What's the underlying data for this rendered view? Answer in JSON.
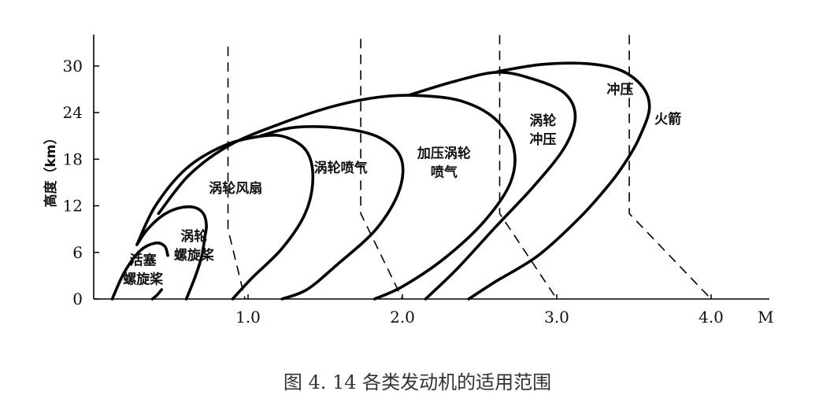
{
  "chart_data": {
    "type": "area",
    "caption": "图 4. 14  各类发动机的适用范围",
    "ylabel": "高度（km）",
    "xlabel": "M",
    "xlim": [
      0,
      4.3
    ],
    "ylim": [
      0,
      34
    ],
    "x_ticks": [
      {
        "value": 1.0,
        "label": "1.0"
      },
      {
        "value": 2.0,
        "label": "2.0"
      },
      {
        "value": 3.0,
        "label": "3.0"
      },
      {
        "value": 4.0,
        "label": "4.0"
      }
    ],
    "y_ticks": [
      {
        "value": 0,
        "label": "0"
      },
      {
        "value": 6,
        "label": "6"
      },
      {
        "value": 12,
        "label": "12"
      },
      {
        "value": 18,
        "label": "18"
      },
      {
        "value": 24,
        "label": "24"
      },
      {
        "value": 30,
        "label": "30"
      }
    ],
    "regions": [
      {
        "name": "piston-prop",
        "labels": [
          "活塞",
          "螺旋桨"
        ],
        "label_pos": [
          0.32,
          4.4
        ],
        "envelope": [
          [
            0.12,
            0
          ],
          [
            0.2,
            3.5
          ],
          [
            0.3,
            6.2
          ],
          [
            0.4,
            7.2
          ],
          [
            0.46,
            6.8
          ],
          [
            0.48,
            5.6
          ]
        ],
        "inner_tail": [
          [
            0.38,
            0
          ],
          [
            0.41,
            0.5
          ],
          [
            0.44,
            1.2
          ]
        ]
      },
      {
        "name": "turboprop",
        "labels": [
          "涡轮",
          "螺旋桨"
        ],
        "label_pos": [
          0.65,
          7.5
        ],
        "envelope": [
          [
            0.28,
            7
          ],
          [
            0.35,
            9
          ],
          [
            0.45,
            10.8
          ],
          [
            0.55,
            11.7
          ],
          [
            0.65,
            11.8
          ],
          [
            0.71,
            11
          ],
          [
            0.73,
            9.5
          ],
          [
            0.72,
            8
          ],
          [
            0.7,
            5.5
          ],
          [
            0.66,
            3
          ],
          [
            0.6,
            0
          ]
        ]
      },
      {
        "name": "turbofan",
        "labels": [
          "涡轮风扇"
        ],
        "label_pos": [
          0.92,
          13.7
        ],
        "envelope": [
          [
            0.28,
            7
          ],
          [
            0.4,
            12
          ],
          [
            0.6,
            16.8
          ],
          [
            0.85,
            19.8
          ],
          [
            1.1,
            21
          ],
          [
            1.25,
            20.8
          ],
          [
            1.38,
            19
          ],
          [
            1.42,
            15.5
          ],
          [
            1.37,
            11
          ],
          [
            1.22,
            6.5
          ],
          [
            1.03,
            2.8
          ],
          [
            0.9,
            0
          ]
        ]
      },
      {
        "name": "turbojet",
        "labels": [
          "涡轮喷气"
        ],
        "label_pos": [
          1.6,
          16.3
        ],
        "envelope": [
          [
            1.08,
            21
          ],
          [
            1.3,
            22.1
          ],
          [
            1.6,
            22
          ],
          [
            1.85,
            20.8
          ],
          [
            1.99,
            18.2
          ],
          [
            1.98,
            14
          ],
          [
            1.83,
            9
          ],
          [
            1.57,
            4.3
          ],
          [
            1.38,
            1.2
          ],
          [
            1.22,
            0
          ]
        ]
      },
      {
        "name": "augmented-turbojet",
        "labels": [
          "加压涡轮",
          "喷气"
        ],
        "label_pos": [
          2.27,
          18.2
        ],
        "envelope": [
          [
            0.42,
            11
          ],
          [
            0.62,
            16
          ],
          [
            0.88,
            19.8
          ],
          [
            1.2,
            22.5
          ],
          [
            1.55,
            24.8
          ],
          [
            1.85,
            26
          ],
          [
            2.1,
            26.2
          ],
          [
            2.38,
            25.5
          ],
          [
            2.6,
            23.2
          ],
          [
            2.72,
            19.5
          ],
          [
            2.7,
            15
          ],
          [
            2.53,
            10
          ],
          [
            2.27,
            5.2
          ],
          [
            2.0,
            1.6
          ],
          [
            1.82,
            0
          ]
        ]
      },
      {
        "name": "turbo-ramjet",
        "labels": [
          "涡轮",
          "冲压"
        ],
        "label_pos": [
          2.91,
          22.4
        ],
        "envelope": [
          [
            2.05,
            26.3
          ],
          [
            2.35,
            28.1
          ],
          [
            2.62,
            29.2
          ],
          [
            2.85,
            28.3
          ],
          [
            3.05,
            26.5
          ],
          [
            3.12,
            23.5
          ],
          [
            3.05,
            19.5
          ],
          [
            2.85,
            14.5
          ],
          [
            2.6,
            9.2
          ],
          [
            2.35,
            3.8
          ],
          [
            2.15,
            0
          ]
        ]
      },
      {
        "name": "ramjet",
        "labels": [
          "冲压"
        ],
        "label_pos": [
          3.41,
          26.4
        ],
        "envelope": [
          [
            2.62,
            29.3
          ],
          [
            2.9,
            30.2
          ],
          [
            3.2,
            30.3
          ],
          [
            3.42,
            29.4
          ],
          [
            3.56,
            27.2
          ],
          [
            3.6,
            24.5
          ],
          [
            3.54,
            21
          ],
          [
            3.47,
            18.4
          ],
          [
            3.35,
            15
          ],
          [
            3.15,
            10.5
          ],
          [
            2.88,
            5.6
          ],
          [
            2.6,
            2.2
          ],
          [
            2.43,
            0
          ]
        ]
      },
      {
        "name": "rocket",
        "labels": [
          "火箭"
        ],
        "label_pos": [
          3.72,
          22.6
        ]
      }
    ],
    "limit_lines": [
      [
        [
          0.87,
          32.5
        ],
        [
          0.87,
          9
        ],
        [
          0.98,
          0
        ]
      ],
      [
        [
          1.73,
          33.5
        ],
        [
          1.73,
          11
        ],
        [
          2.0,
          0
        ]
      ],
      [
        [
          2.63,
          34
        ],
        [
          2.63,
          11
        ],
        [
          3.0,
          0
        ]
      ],
      [
        [
          3.47,
          34
        ],
        [
          3.47,
          11
        ],
        [
          4.0,
          0
        ]
      ]
    ]
  }
}
